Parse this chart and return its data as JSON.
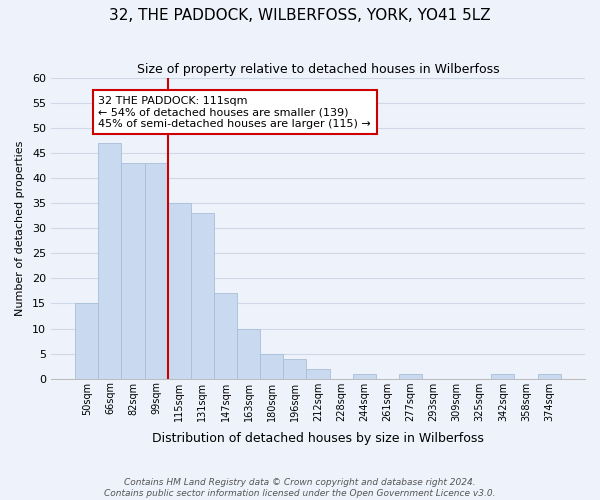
{
  "title": "32, THE PADDOCK, WILBERFOSS, YORK, YO41 5LZ",
  "subtitle": "Size of property relative to detached houses in Wilberfoss",
  "xlabel": "Distribution of detached houses by size in Wilberfoss",
  "ylabel": "Number of detached properties",
  "bin_labels": [
    "50sqm",
    "66sqm",
    "82sqm",
    "99sqm",
    "115sqm",
    "131sqm",
    "147sqm",
    "163sqm",
    "180sqm",
    "196sqm",
    "212sqm",
    "228sqm",
    "244sqm",
    "261sqm",
    "277sqm",
    "293sqm",
    "309sqm",
    "325sqm",
    "342sqm",
    "358sqm",
    "374sqm"
  ],
  "bar_heights": [
    15,
    47,
    43,
    43,
    35,
    33,
    17,
    10,
    5,
    4,
    2,
    0,
    1,
    0,
    1,
    0,
    0,
    0,
    1,
    0,
    1
  ],
  "bar_color": "#c9d9f0",
  "bar_edge_color": "#a8bfd8",
  "vline_color": "#cc0000",
  "vline_x": 3.5,
  "annotation_title": "32 THE PADDOCK: 111sqm",
  "annotation_line1": "← 54% of detached houses are smaller (139)",
  "annotation_line2": "45% of semi-detached houses are larger (115) →",
  "annotation_box_color": "#ffffff",
  "annotation_box_edge": "#cc0000",
  "ylim": [
    0,
    60
  ],
  "yticks": [
    0,
    5,
    10,
    15,
    20,
    25,
    30,
    35,
    40,
    45,
    50,
    55,
    60
  ],
  "footer1": "Contains HM Land Registry data © Crown copyright and database right 2024.",
  "footer2": "Contains public sector information licensed under the Open Government Licence v3.0.",
  "bg_color": "#eef2fb"
}
